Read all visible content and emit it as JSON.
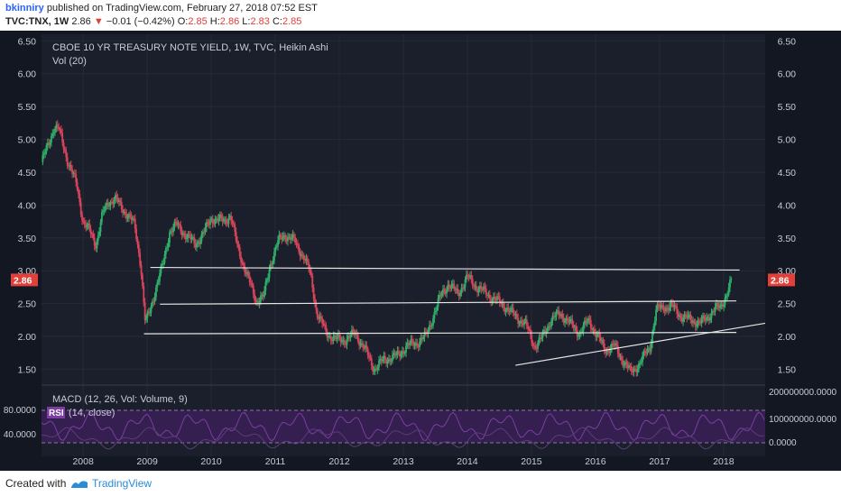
{
  "header": {
    "user": "bkinniry",
    "published": "published on TradingView.com, February 27, 2018 07:52 EST",
    "symbol": "TVC:TNX, 1W",
    "price": "2.86",
    "change": "−0.01 (−0.42%)",
    "o_label": "O:",
    "o_val": "2.85",
    "h_label": "H:",
    "h_val": "2.86",
    "l_label": "L:",
    "l_val": "2.83",
    "c_label": "C:",
    "c_val": "2.85",
    "down_arrow": "▼"
  },
  "chart_data": [
    {
      "type": "candlestick",
      "title": "CBOE 10 YR TREASURY NOTE YIELD, 1W, TVC, Heikin Ashi",
      "subtitle": "Vol (20)",
      "y_ticks": [
        "6.50",
        "6.00",
        "5.50",
        "5.00",
        "4.50",
        "4.00",
        "3.50",
        "3.00",
        "2.50",
        "2.00",
        "1.50"
      ],
      "ylim": [
        1.3,
        6.6
      ],
      "x_ticks": [
        "2008",
        "2009",
        "2010",
        "2011",
        "2012",
        "2013",
        "2014",
        "2015",
        "2016",
        "2017",
        "2018"
      ],
      "xlim": [
        2007.35,
        2018.65
      ],
      "last_price": "2.86",
      "series_points": [
        [
          2007.35,
          4.65
        ],
        [
          2007.45,
          4.9
        ],
        [
          2007.55,
          5.2
        ],
        [
          2007.62,
          5.15
        ],
        [
          2007.75,
          4.7
        ],
        [
          2007.9,
          4.3
        ],
        [
          2008.0,
          3.75
        ],
        [
          2008.1,
          3.6
        ],
        [
          2008.2,
          3.4
        ],
        [
          2008.3,
          3.85
        ],
        [
          2008.4,
          4.05
        ],
        [
          2008.5,
          4.1
        ],
        [
          2008.6,
          3.95
        ],
        [
          2008.7,
          3.85
        ],
        [
          2008.8,
          3.7
        ],
        [
          2008.9,
          3.1
        ],
        [
          2008.97,
          2.2
        ],
        [
          2009.05,
          2.4
        ],
        [
          2009.15,
          2.8
        ],
        [
          2009.25,
          3.1
        ],
        [
          2009.35,
          3.6
        ],
        [
          2009.45,
          3.7
        ],
        [
          2009.6,
          3.55
        ],
        [
          2009.75,
          3.4
        ],
        [
          2009.9,
          3.6
        ],
        [
          2010.0,
          3.8
        ],
        [
          2010.2,
          3.75
        ],
        [
          2010.3,
          3.85
        ],
        [
          2010.4,
          3.4
        ],
        [
          2010.55,
          2.95
        ],
        [
          2010.7,
          2.55
        ],
        [
          2010.82,
          2.6
        ],
        [
          2010.92,
          3.1
        ],
        [
          2011.05,
          3.45
        ],
        [
          2011.15,
          3.55
        ],
        [
          2011.3,
          3.45
        ],
        [
          2011.45,
          3.2
        ],
        [
          2011.55,
          2.95
        ],
        [
          2011.65,
          2.35
        ],
        [
          2011.8,
          2.05
        ],
        [
          2011.95,
          1.95
        ],
        [
          2012.1,
          1.95
        ],
        [
          2012.25,
          2.05
        ],
        [
          2012.4,
          1.8
        ],
        [
          2012.55,
          1.5
        ],
        [
          2012.7,
          1.65
        ],
        [
          2012.9,
          1.7
        ],
        [
          2013.05,
          1.85
        ],
        [
          2013.2,
          1.9
        ],
        [
          2013.35,
          2.0
        ],
        [
          2013.5,
          2.4
        ],
        [
          2013.6,
          2.65
        ],
        [
          2013.7,
          2.8
        ],
        [
          2013.85,
          2.65
        ],
        [
          2014.0,
          2.9
        ],
        [
          2014.15,
          2.75
        ],
        [
          2014.3,
          2.65
        ],
        [
          2014.45,
          2.55
        ],
        [
          2014.6,
          2.45
        ],
        [
          2014.75,
          2.3
        ],
        [
          2014.9,
          2.2
        ],
        [
          2015.05,
          1.85
        ],
        [
          2015.15,
          1.95
        ],
        [
          2015.3,
          2.25
        ],
        [
          2015.45,
          2.35
        ],
        [
          2015.6,
          2.2
        ],
        [
          2015.75,
          2.05
        ],
        [
          2015.9,
          2.25
        ],
        [
          2016.0,
          2.05
        ],
        [
          2016.15,
          1.8
        ],
        [
          2016.3,
          1.85
        ],
        [
          2016.45,
          1.6
        ],
        [
          2016.55,
          1.45
        ],
        [
          2016.7,
          1.6
        ],
        [
          2016.85,
          1.85
        ],
        [
          2016.95,
          2.4
        ],
        [
          2017.05,
          2.45
        ],
        [
          2017.2,
          2.45
        ],
        [
          2017.35,
          2.3
        ],
        [
          2017.5,
          2.25
        ],
        [
          2017.65,
          2.2
        ],
        [
          2017.75,
          2.3
        ],
        [
          2017.85,
          2.4
        ],
        [
          2017.95,
          2.45
        ],
        [
          2018.05,
          2.65
        ],
        [
          2018.13,
          2.86
        ]
      ],
      "trend_lines": [
        {
          "x1": 2009.05,
          "y1": 3.05,
          "x2": 2018.25,
          "y2": 3.01
        },
        {
          "x1": 2009.2,
          "y1": 2.49,
          "x2": 2018.2,
          "y2": 2.54
        },
        {
          "x1": 2008.95,
          "y1": 2.04,
          "x2": 2018.2,
          "y2": 2.06
        },
        {
          "x1": 2014.75,
          "y1": 1.56,
          "x2": 2018.65,
          "y2": 2.2
        }
      ]
    },
    {
      "type": "line",
      "title": "MACD (12, 26, Vol: Volume, 9)",
      "rsi_badge": "RSI",
      "rsi_params": "(14, close)",
      "left_ticks": [
        "80.0000",
        "40.0000"
      ],
      "right_ticks": [
        "200000000.0000",
        "100000000.0000",
        "0.0000"
      ]
    }
  ],
  "footer": {
    "created_with": "Created with",
    "brand": "TradingView"
  }
}
